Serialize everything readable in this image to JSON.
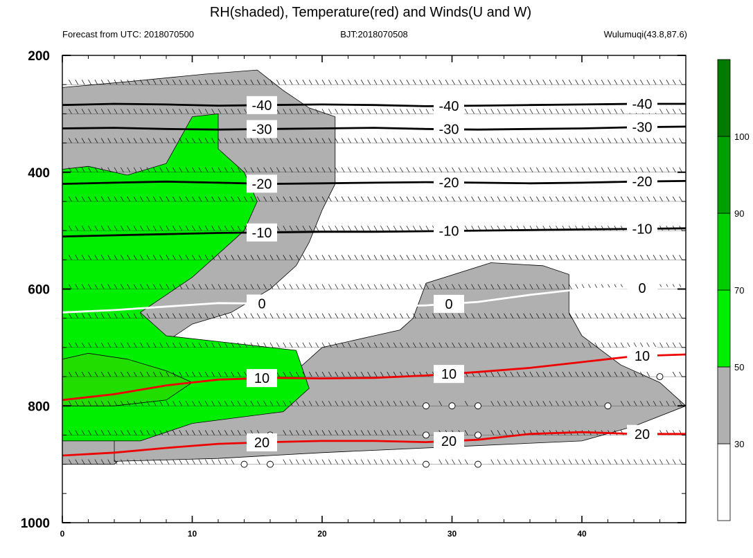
{
  "chart_data": {
    "type": "heatmap",
    "title": "RH(shaded), Temperature(red) and Winds(U and W)",
    "left_string": "Forecast from UTC: 2018070500",
    "center_string": "BJT:2018070508",
    "right_string": "Wulumuqi(43.8,87.6)",
    "x": {
      "range": [
        0,
        48
      ],
      "ticks": [
        0,
        10,
        20,
        30,
        40
      ]
    },
    "y": {
      "range": [
        1000,
        200
      ],
      "ticks": [
        200,
        400,
        600,
        800,
        1000
      ],
      "reversed": true,
      "levels": [
        250,
        300,
        350,
        400,
        450,
        500,
        550,
        600,
        650,
        700,
        750,
        800,
        850,
        900
      ]
    },
    "rh_levels": [
      30,
      50,
      70,
      90,
      100
    ],
    "rh_colors": [
      "#ffffff",
      "#b0b0b0",
      "#00ee00",
      "#00cd00",
      "#00a000",
      "#007a00"
    ],
    "temperature_contours": [
      {
        "value": -40,
        "label": "-40",
        "y": [
          285,
          283,
          284,
          286,
          285,
          284,
          285,
          287,
          286,
          285,
          284,
          283,
          283
        ]
      },
      {
        "value": -30,
        "label": "-30",
        "y": [
          325,
          324,
          326,
          327,
          326,
          325,
          324,
          326,
          327,
          326,
          325,
          323,
          322
        ]
      },
      {
        "value": -20,
        "label": "-20",
        "y": [
          420,
          418,
          416,
          418,
          420,
          419,
          418,
          417,
          418,
          419,
          418,
          416,
          415
        ]
      },
      {
        "value": -10,
        "label": "-10",
        "y": [
          510,
          508,
          506,
          504,
          503,
          502,
          502,
          501,
          500,
          499,
          498,
          497,
          496
        ]
      },
      {
        "value": 0,
        "label": "0",
        "y": [
          640,
          636,
          630,
          624,
          625,
          626,
          630,
          628,
          622,
          610,
          600,
          598,
          598
        ]
      },
      {
        "value": 10,
        "label": "10",
        "y": [
          790,
          780,
          765,
          755,
          752,
          753,
          752,
          748,
          742,
          735,
          725,
          715,
          712
        ]
      },
      {
        "value": 20,
        "label": "20",
        "y": [
          885,
          880,
          872,
          865,
          862,
          860,
          860,
          862,
          858,
          848,
          845,
          848,
          848
        ]
      }
    ],
    "rh_region_30_50": [
      [
        0,
        255
      ],
      [
        5,
        245
      ],
      [
        11,
        232
      ],
      [
        15,
        225
      ],
      [
        17,
        260
      ],
      [
        19,
        290
      ],
      [
        21,
        305
      ],
      [
        21,
        350
      ],
      [
        21,
        420
      ],
      [
        20,
        465
      ],
      [
        19,
        520
      ],
      [
        18,
        560
      ],
      [
        16,
        600
      ],
      [
        13,
        640
      ],
      [
        10,
        660
      ],
      [
        8,
        690
      ],
      [
        6,
        730
      ],
      [
        5,
        760
      ],
      [
        5,
        800
      ],
      [
        5,
        850
      ],
      [
        5,
        880
      ],
      [
        4,
        900
      ],
      [
        0,
        900
      ]
    ],
    "rh_region_grey_mid": [
      [
        27,
        650
      ],
      [
        28,
        590
      ],
      [
        33,
        555
      ],
      [
        37,
        560
      ],
      [
        39,
        575
      ],
      [
        39,
        640
      ],
      [
        40,
        680
      ],
      [
        43,
        730
      ],
      [
        46,
        760
      ],
      [
        48,
        800
      ],
      [
        44,
        835
      ],
      [
        40,
        860
      ],
      [
        30,
        870
      ],
      [
        20,
        880
      ],
      [
        12,
        890
      ],
      [
        4,
        895
      ],
      [
        4,
        850
      ],
      [
        8,
        830
      ],
      [
        14,
        805
      ],
      [
        18,
        740
      ],
      [
        20,
        700
      ],
      [
        24,
        680
      ],
      [
        26,
        670
      ]
    ],
    "rh_region_green": [
      [
        0,
        395
      ],
      [
        2,
        390
      ],
      [
        5,
        405
      ],
      [
        8,
        385
      ],
      [
        10,
        305
      ],
      [
        12,
        300
      ],
      [
        12,
        360
      ],
      [
        14,
        400
      ],
      [
        15,
        450
      ],
      [
        14,
        500
      ],
      [
        12,
        540
      ],
      [
        10,
        580
      ],
      [
        8,
        610
      ],
      [
        6,
        640
      ],
      [
        8,
        680
      ],
      [
        12,
        690
      ],
      [
        18,
        705
      ],
      [
        19,
        770
      ],
      [
        17,
        810
      ],
      [
        10,
        830
      ],
      [
        6,
        860
      ],
      [
        2,
        860
      ],
      [
        0,
        860
      ]
    ],
    "rh_region_bright": [
      [
        0,
        720
      ],
      [
        2,
        710
      ],
      [
        5,
        720
      ],
      [
        8,
        740
      ],
      [
        10,
        760
      ],
      [
        8,
        790
      ],
      [
        4,
        800
      ],
      [
        0,
        800
      ]
    ],
    "wind_levels": [
      250,
      300,
      350,
      400,
      450,
      500,
      550,
      600,
      650,
      700,
      750,
      800,
      850,
      900
    ],
    "calm_markers": [
      {
        "x": 28,
        "p": 800
      },
      {
        "x": 30,
        "p": 800
      },
      {
        "x": 32,
        "p": 800
      },
      {
        "x": 42,
        "p": 800
      },
      {
        "x": 46,
        "p": 750
      },
      {
        "x": 16,
        "p": 850
      },
      {
        "x": 28,
        "p": 850
      },
      {
        "x": 32,
        "p": 850
      },
      {
        "x": 14,
        "p": 900
      },
      {
        "x": 16,
        "p": 900
      },
      {
        "x": 28,
        "p": 900
      },
      {
        "x": 32,
        "p": 900
      }
    ],
    "colors": {
      "temperature": "#ee0000",
      "freezing": "#ffffff",
      "isotherm": "#000000"
    },
    "grid": false
  }
}
